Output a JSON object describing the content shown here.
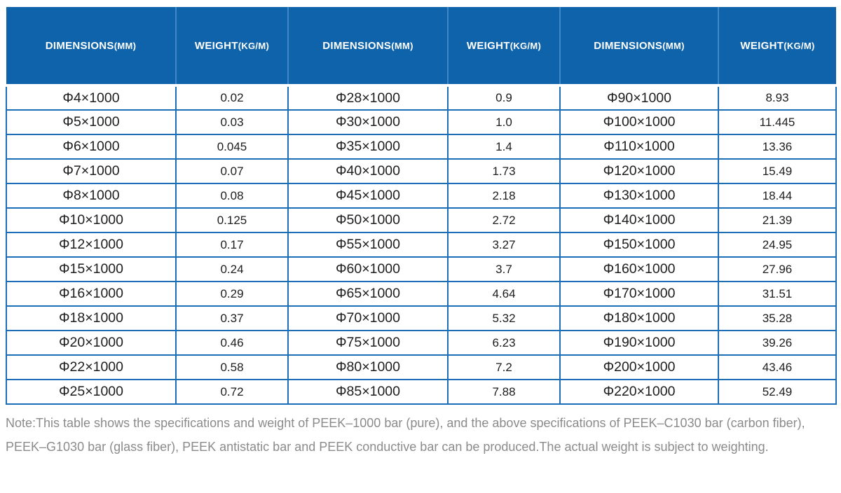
{
  "header": {
    "columns": [
      {
        "label": "DIMENSIONS",
        "unit": "(MM)"
      },
      {
        "label": "WEIGHT",
        "unit": "(KG/M)"
      },
      {
        "label": "DIMENSIONS",
        "unit": "(MM)"
      },
      {
        "label": "WEIGHT",
        "unit": "(KG/M)"
      },
      {
        "label": "DIMENSIONS",
        "unit": "(MM)"
      },
      {
        "label": "WEIGHT",
        "unit": "(KG/M)"
      }
    ]
  },
  "table": {
    "rows": [
      [
        "Φ4×1000",
        "0.02",
        "Φ28×1000",
        "0.9",
        "Φ90×1000",
        "8.93"
      ],
      [
        "Φ5×1000",
        "0.03",
        "Φ30×1000",
        "1.0",
        "Φ100×1000",
        "11.445"
      ],
      [
        "Φ6×1000",
        "0.045",
        "Φ35×1000",
        "1.4",
        "Φ110×1000",
        "13.36"
      ],
      [
        "Φ7×1000",
        "0.07",
        "Φ40×1000",
        "1.73",
        "Φ120×1000",
        "15.49"
      ],
      [
        "Φ8×1000",
        "0.08",
        "Φ45×1000",
        "2.18",
        "Φ130×1000",
        "18.44"
      ],
      [
        "Φ10×1000",
        "0.125",
        "Φ50×1000",
        "2.72",
        "Φ140×1000",
        "21.39"
      ],
      [
        "Φ12×1000",
        "0.17",
        "Φ55×1000",
        "3.27",
        "Φ150×1000",
        "24.95"
      ],
      [
        "Φ15×1000",
        "0.24",
        "Φ60×1000",
        "3.7",
        "Φ160×1000",
        "27.96"
      ],
      [
        "Φ16×1000",
        "0.29",
        "Φ65×1000",
        "4.64",
        "Φ170×1000",
        "31.51"
      ],
      [
        "Φ18×1000",
        "0.37",
        "Φ70×1000",
        "5.32",
        "Φ180×1000",
        "35.28"
      ],
      [
        "Φ20×1000",
        "0.46",
        "Φ75×1000",
        "6.23",
        "Φ190×1000",
        "39.26"
      ],
      [
        "Φ22×1000",
        "0.58",
        "Φ80×1000",
        "7.2",
        "Φ200×1000",
        "43.46"
      ],
      [
        "Φ25×1000",
        "0.72",
        "Φ85×1000",
        "7.88",
        "Φ220×1000",
        "52.49"
      ]
    ]
  },
  "note": {
    "text": "Note:This table shows the specifications and weight of PEEK–1000 bar (pure), and the above specifications of PEEK–C1030 bar (carbon fiber), PEEK–G1030 bar (glass fiber), PEEK antistatic bar and PEEK conductive bar can be produced.The actual weight is subject to weighting."
  },
  "colors": {
    "header_background": "#0e63aa",
    "header_text": "#ffffff",
    "header_divider": "#3f87c7",
    "cell_border": "#1d6eb8",
    "cell_text": "#1d1d1d",
    "note_text": "#8b8b8b"
  }
}
